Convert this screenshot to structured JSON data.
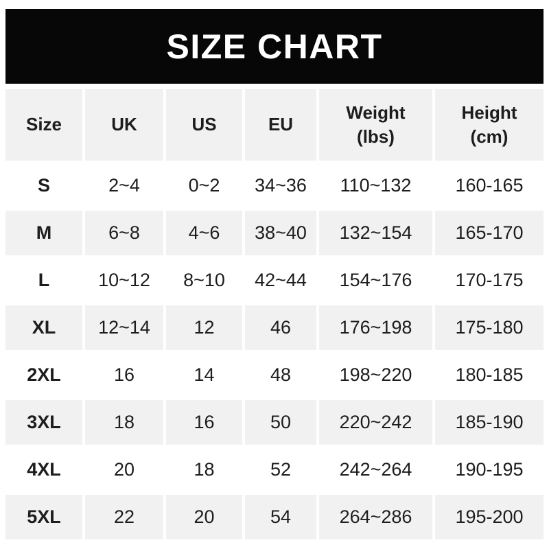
{
  "banner": {
    "title": "SIZE CHART"
  },
  "chart_data": {
    "type": "table",
    "title": "SIZE CHART",
    "columns": [
      "Size",
      "UK",
      "US",
      "EU",
      "Weight (lbs)",
      "Height (cm)"
    ],
    "header": [
      {
        "label": "Size"
      },
      {
        "label": "UK"
      },
      {
        "label": "US"
      },
      {
        "label": "EU"
      },
      {
        "label": "Weight",
        "label2": "(lbs)"
      },
      {
        "label": "Height",
        "label2": "(cm)"
      }
    ],
    "rows": [
      [
        "S",
        "2~4",
        "0~2",
        "34~36",
        "110~132",
        "160-165"
      ],
      [
        "M",
        "6~8",
        "4~6",
        "38~40",
        "132~154",
        "165-170"
      ],
      [
        "L",
        "10~12",
        "8~10",
        "42~44",
        "154~176",
        "170-175"
      ],
      [
        "XL",
        "12~14",
        "12",
        "46",
        "176~198",
        "175-180"
      ],
      [
        "2XL",
        "16",
        "14",
        "48",
        "198~220",
        "180-185"
      ],
      [
        "3XL",
        "18",
        "16",
        "50",
        "220~242",
        "185-190"
      ],
      [
        "4XL",
        "20",
        "18",
        "52",
        "242~264",
        "190-195"
      ],
      [
        "5XL",
        "22",
        "20",
        "54",
        "264~286",
        "195-200"
      ]
    ]
  },
  "colors": {
    "banner_bg": "#070707",
    "banner_text": "#ffffff",
    "cell_bg": "#ffffff",
    "cell_alt_bg": "#f1f1f1",
    "text": "#1d1d1f"
  }
}
